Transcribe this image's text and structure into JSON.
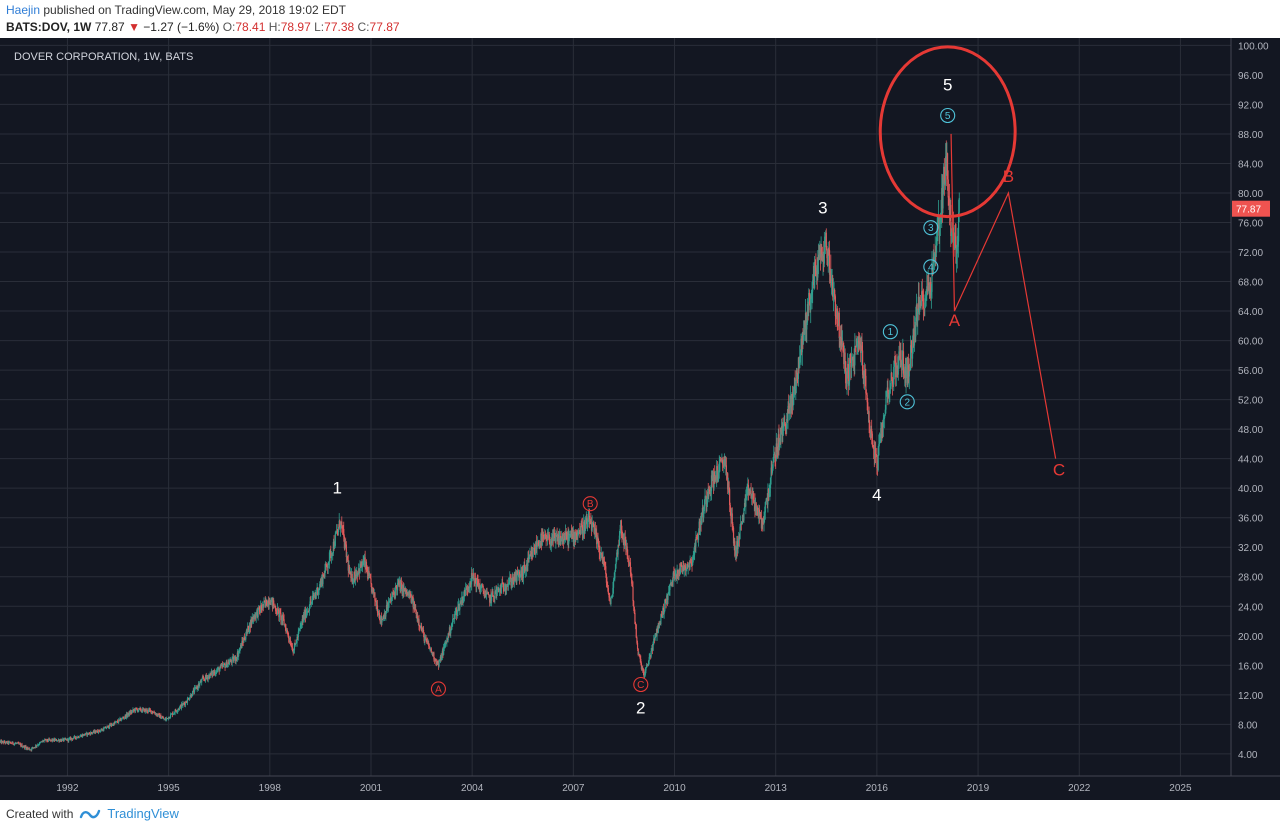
{
  "header": {
    "author": "Haejin",
    "published": " published on TradingView.com, May 29, 2018 19:02 EDT"
  },
  "ohlc": {
    "symbol": "BATS:DOV, 1W",
    "last": "77.87",
    "arrow": "▼",
    "change": "−1.27 (−1.6%)",
    "o_label": "O:",
    "o": "78.41",
    "h_label": "H:",
    "h": "78.97",
    "l_label": "L:",
    "l": "77.38",
    "c_label": "C:",
    "c": "77.87"
  },
  "footer": {
    "created": "Created with",
    "brand": "TradingView"
  },
  "colors": {
    "background": "#131722",
    "up": "#2e9e8e",
    "down": "#e05a5a",
    "wave": "#ffffff",
    "circle_wave": "#4fc3d9",
    "red": "#e53935",
    "price_tag": "#ef5350",
    "grid": "#2a2e39"
  },
  "chart_data": {
    "type": "candlestick",
    "title": "DOVER CORPORATION, 1W, BATS",
    "x_range": [
      1990.0,
      2026.5
    ],
    "y_range": [
      1.0,
      101.0
    ],
    "y_ticks": [
      "4.00",
      "8.00",
      "12.00",
      "16.00",
      "20.00",
      "24.00",
      "28.00",
      "32.00",
      "36.00",
      "40.00",
      "44.00",
      "48.00",
      "52.00",
      "56.00",
      "60.00",
      "64.00",
      "68.00",
      "72.00",
      "76.00",
      "80.00",
      "84.00",
      "88.00",
      "92.00",
      "96.00",
      "100.00"
    ],
    "x_ticks": [
      {
        "x": 1992,
        "label": "1992"
      },
      {
        "x": 1995,
        "label": "1995"
      },
      {
        "x": 1998,
        "label": "1998"
      },
      {
        "x": 2001,
        "label": "2001"
      },
      {
        "x": 2004,
        "label": "2004"
      },
      {
        "x": 2007,
        "label": "2007"
      },
      {
        "x": 2010,
        "label": "2010"
      },
      {
        "x": 2013,
        "label": "2013"
      },
      {
        "x": 2016,
        "label": "2016"
      },
      {
        "x": 2019,
        "label": "2019"
      },
      {
        "x": 2022,
        "label": "2022"
      },
      {
        "x": 2025,
        "label": "2025"
      }
    ],
    "last_price": "77.87",
    "price_path": [
      [
        1990.0,
        5.6
      ],
      [
        1990.5,
        5.4
      ],
      [
        1990.9,
        4.6
      ],
      [
        1991.3,
        5.8
      ],
      [
        1992.0,
        5.9
      ],
      [
        1992.5,
        6.6
      ],
      [
        1993.0,
        7.2
      ],
      [
        1993.5,
        8.4
      ],
      [
        1994.0,
        10.0
      ],
      [
        1994.5,
        9.8
      ],
      [
        1994.9,
        8.6
      ],
      [
        1995.5,
        11.0
      ],
      [
        1996.0,
        14.0
      ],
      [
        1996.5,
        15.5
      ],
      [
        1997.0,
        17.0
      ],
      [
        1997.5,
        22.5
      ],
      [
        1998.0,
        25.0
      ],
      [
        1998.4,
        22.0
      ],
      [
        1998.7,
        18.0
      ],
      [
        1999.0,
        22.5
      ],
      [
        1999.5,
        27.0
      ],
      [
        1999.8,
        31.0
      ],
      [
        2000.1,
        35.5
      ],
      [
        2000.4,
        27.5
      ],
      [
        2000.8,
        30.0
      ],
      [
        2001.3,
        22.0
      ],
      [
        2001.8,
        27.0
      ],
      [
        2002.2,
        25.0
      ],
      [
        2002.6,
        19.5
      ],
      [
        2003.0,
        16.0
      ],
      [
        2003.5,
        23.0
      ],
      [
        2004.0,
        28.0
      ],
      [
        2004.5,
        25.0
      ],
      [
        2005.0,
        27.0
      ],
      [
        2005.5,
        28.5
      ],
      [
        2006.0,
        33.0
      ],
      [
        2006.5,
        33.0
      ],
      [
        2007.0,
        33.5
      ],
      [
        2007.5,
        35.5
      ],
      [
        2007.9,
        30.0
      ],
      [
        2008.1,
        24.0
      ],
      [
        2008.4,
        35.0
      ],
      [
        2008.7,
        29.0
      ],
      [
        2008.9,
        18.0
      ],
      [
        2009.1,
        14.5
      ],
      [
        2009.5,
        21.0
      ],
      [
        2010.0,
        28.5
      ],
      [
        2010.5,
        30.0
      ],
      [
        2011.0,
        40.0
      ],
      [
        2011.5,
        44.0
      ],
      [
        2011.8,
        31.0
      ],
      [
        2012.2,
        40.0
      ],
      [
        2012.6,
        35.0
      ],
      [
        2013.0,
        45.0
      ],
      [
        2013.5,
        52.0
      ],
      [
        2013.9,
        63.0
      ],
      [
        2014.2,
        70.0
      ],
      [
        2014.5,
        73.0
      ],
      [
        2014.8,
        64.0
      ],
      [
        2015.1,
        55.0
      ],
      [
        2015.5,
        60.0
      ],
      [
        2015.8,
        48.0
      ],
      [
        2016.0,
        43.0
      ],
      [
        2016.3,
        53.0
      ],
      [
        2016.7,
        58.0
      ],
      [
        2016.9,
        55.0
      ],
      [
        2017.2,
        64.0
      ],
      [
        2017.6,
        68.0
      ],
      [
        2017.9,
        78.0
      ],
      [
        2018.05,
        85.0
      ],
      [
        2018.2,
        75.0
      ],
      [
        2018.35,
        72.0
      ],
      [
        2018.45,
        77.87
      ]
    ],
    "wave_labels": [
      {
        "label": "1",
        "x": 2000.0,
        "y": 39.3,
        "color": "#ffffff"
      },
      {
        "label": "2",
        "x": 2009.0,
        "y": 9.5,
        "color": "#ffffff"
      },
      {
        "label": "3",
        "x": 2014.4,
        "y": 77.2,
        "color": "#ffffff"
      },
      {
        "label": "4",
        "x": 2016.0,
        "y": 38.3,
        "color": "#ffffff"
      },
      {
        "label": "5",
        "x": 2018.1,
        "y": 93.9,
        "color": "#ffffff"
      },
      {
        "label": "A",
        "x": 2018.3,
        "y": 62.0,
        "color": "#e53935"
      },
      {
        "label": "B",
        "x": 2019.9,
        "y": 81.5,
        "color": "#e53935"
      },
      {
        "label": "C",
        "x": 2021.4,
        "y": 41.7,
        "color": "#e53935"
      }
    ],
    "circle_labels": [
      {
        "label": "A",
        "x": 2003.0,
        "y": 12.8,
        "color": "#e53935"
      },
      {
        "label": "B",
        "x": 2007.5,
        "y": 37.9,
        "color": "#e53935"
      },
      {
        "label": "C",
        "x": 2009.0,
        "y": 13.4,
        "color": "#e53935"
      },
      {
        "label": "1",
        "x": 2016.4,
        "y": 61.2,
        "color": "#4fc3d9"
      },
      {
        "label": "2",
        "x": 2016.9,
        "y": 51.7,
        "color": "#4fc3d9"
      },
      {
        "label": "3",
        "x": 2017.6,
        "y": 75.3,
        "color": "#4fc3d9"
      },
      {
        "label": "4",
        "x": 2017.6,
        "y": 70.0,
        "color": "#4fc3d9"
      },
      {
        "label": "5",
        "x": 2018.1,
        "y": 90.5,
        "color": "#4fc3d9"
      }
    ],
    "projection": [
      [
        2018.2,
        88.0
      ],
      [
        2018.3,
        64.0
      ],
      [
        2019.9,
        80.0
      ],
      [
        2021.3,
        44.0
      ]
    ],
    "highlight_circle": {
      "cx": 2018.1,
      "cy": 88.3,
      "r_years": 2.0,
      "r_price": 11.5
    }
  }
}
